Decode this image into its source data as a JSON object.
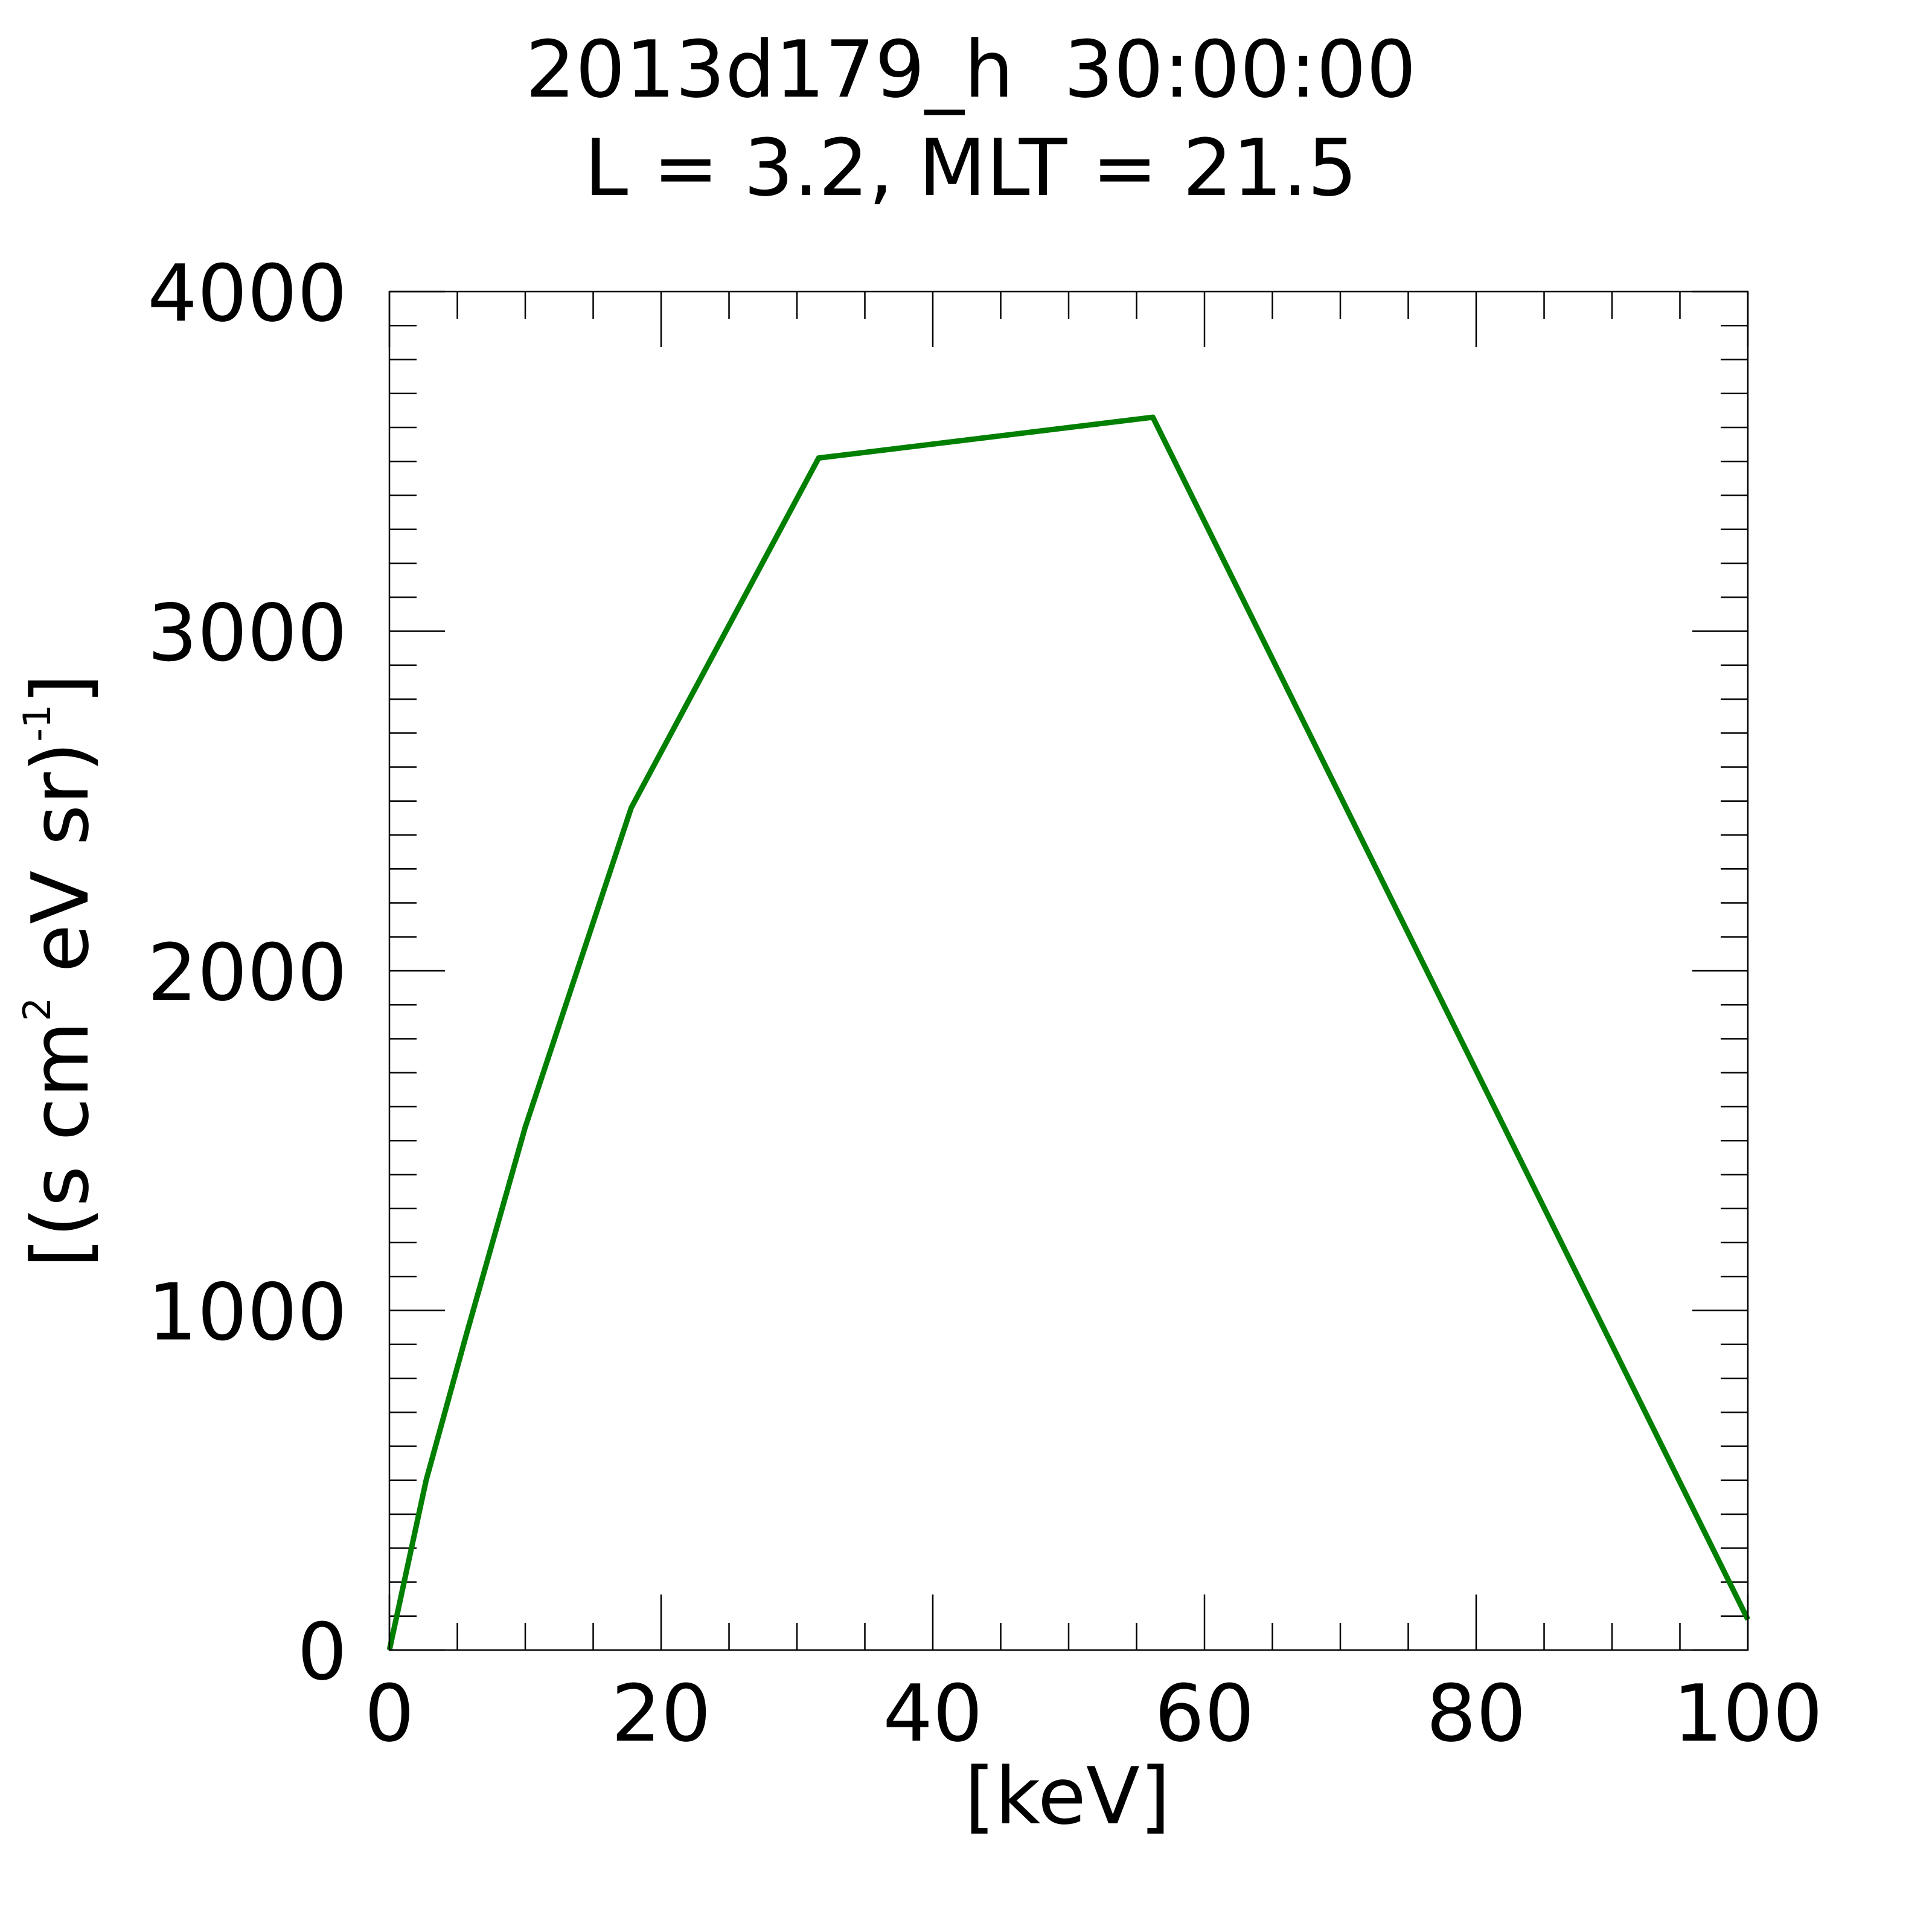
{
  "chart_data": {
    "type": "line",
    "title_line1": "2013d179_h  30:00:00",
    "title_line2": "L = 3.2, MLT = 21.5",
    "xlabel": "[keV]",
    "ylabel": {
      "part1": "[(s cm",
      "sup1": "2",
      "part2": " eV sr)",
      "sup2": "-1",
      "part3": "]"
    },
    "xlim": [
      0,
      100
    ],
    "ylim": [
      0,
      4000
    ],
    "x_major_ticks": [
      0,
      20,
      40,
      60,
      80,
      100
    ],
    "x_tick_labels": [
      "0",
      "20",
      "40",
      "60",
      "80",
      "100"
    ],
    "x_minor_step": 5,
    "y_major_ticks": [
      0,
      1000,
      2000,
      3000,
      4000
    ],
    "y_tick_labels": [
      "0",
      "1000",
      "2000",
      "3000",
      "4000"
    ],
    "y_minor_step": 100,
    "grid": false,
    "legend": "none",
    "series": [
      {
        "color": "#007f00",
        "x": [
          0,
          2.7,
          5.6,
          10,
          17.8,
          31.6,
          56.2,
          100
        ],
        "y": [
          0,
          500,
          920,
          1540,
          2480,
          3510,
          3630,
          90
        ]
      }
    ]
  }
}
